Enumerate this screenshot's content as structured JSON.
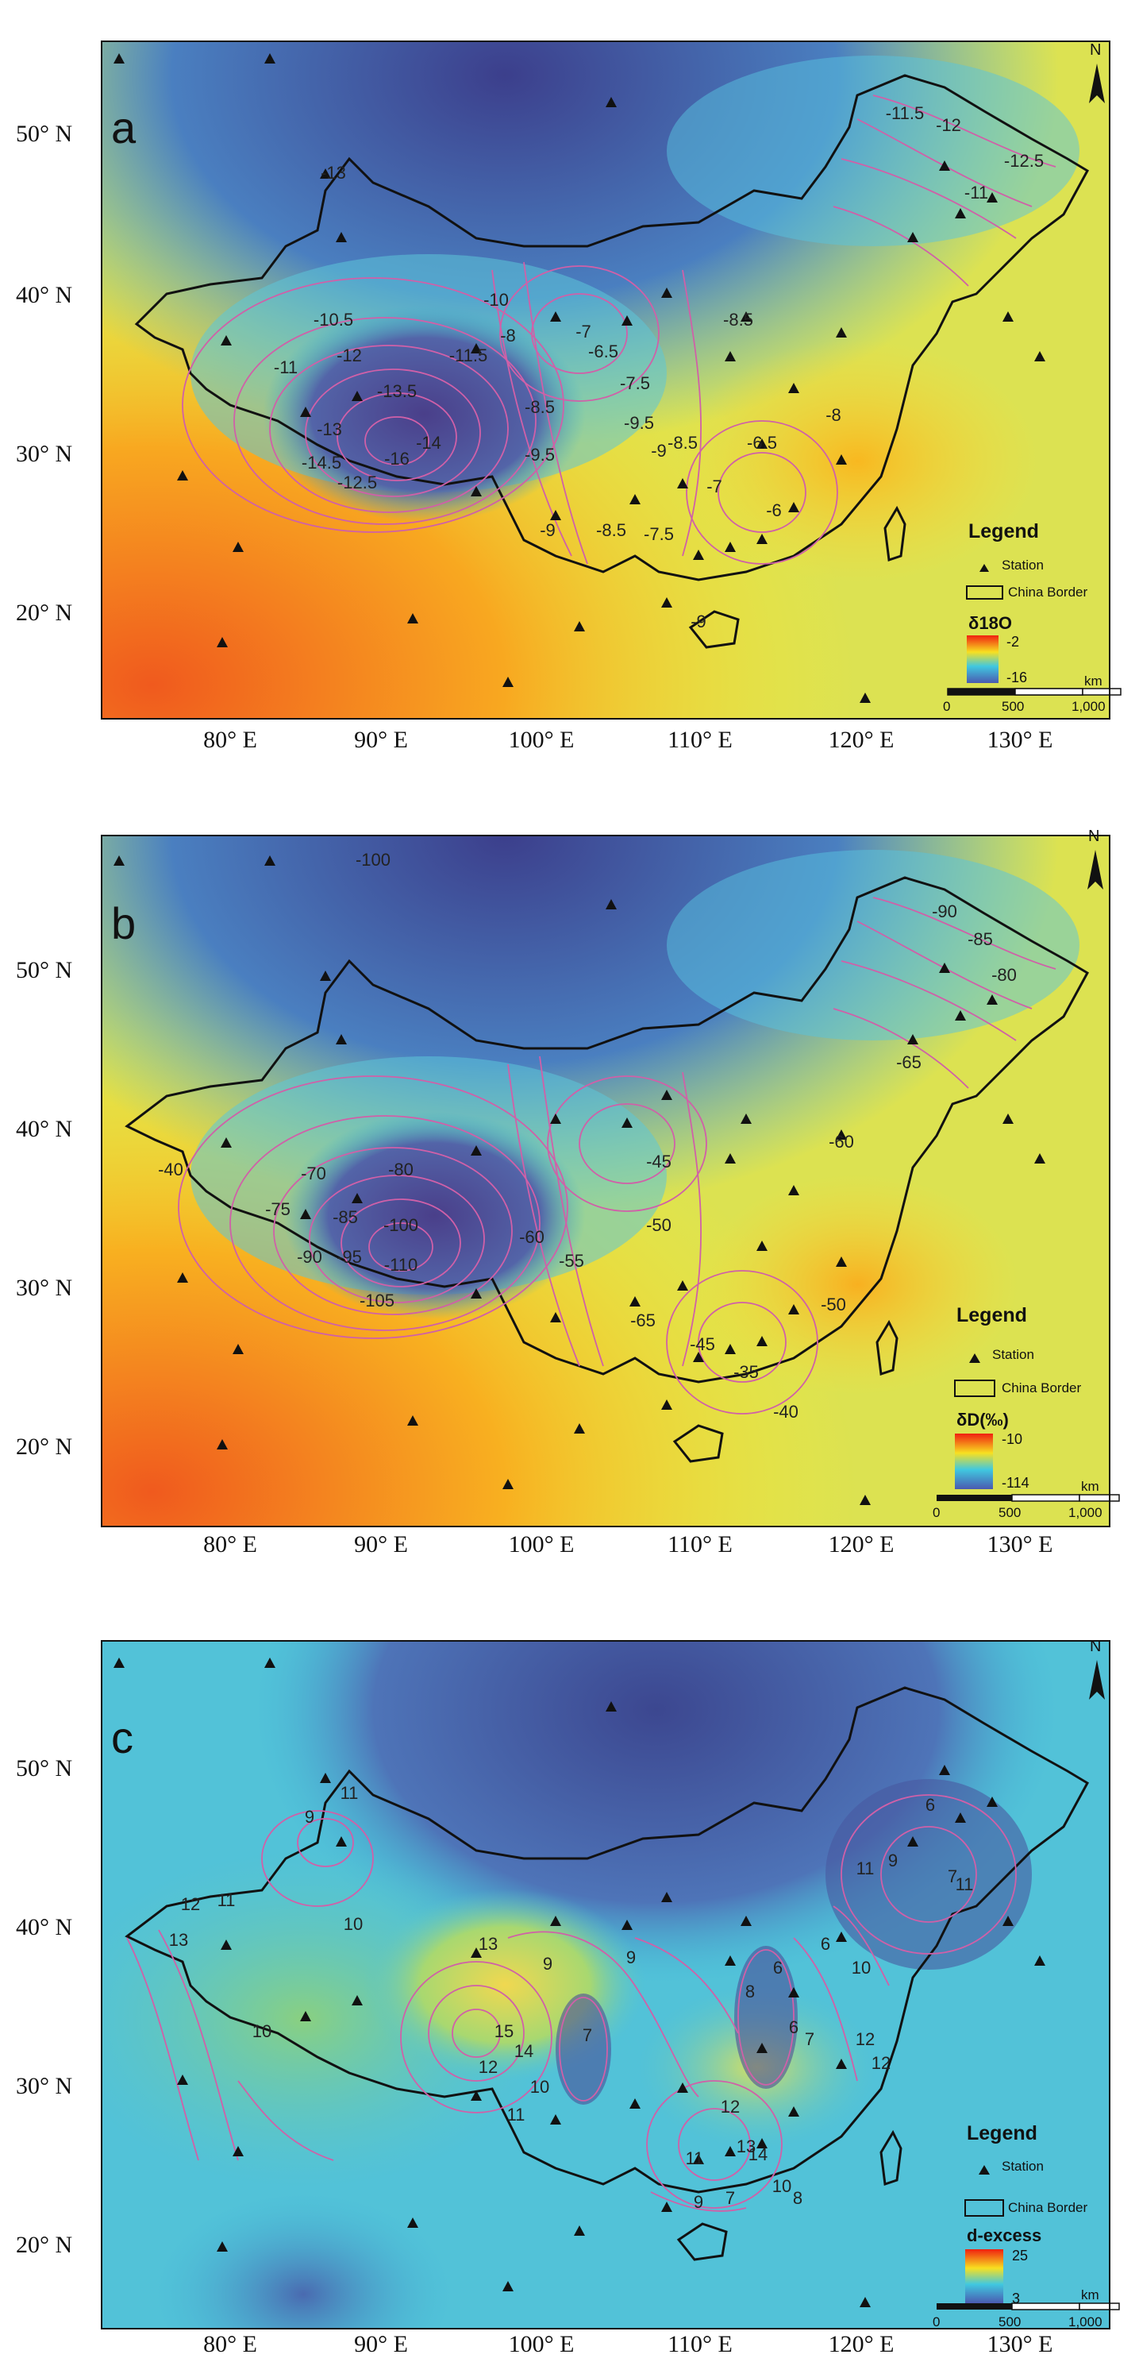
{
  "panels": [
    {
      "label": "a",
      "legend": {
        "title": "Legend",
        "station": "Station",
        "border": "China Border",
        "variable": "δ18O",
        "max": "-2",
        "min": "-16"
      },
      "contour_labels": [
        "-13",
        "-10.5",
        "-11",
        "-12",
        "-13.5",
        "-13",
        "-14.5",
        "-16",
        "-14",
        "-12.5",
        "-11.5",
        "-10",
        "-8",
        "-9.5",
        "-8.5",
        "-7",
        "-6.5",
        "-7.5",
        "-9",
        "-8.5",
        "-9.5",
        "-9",
        "-8.5",
        "-7.5",
        "-7",
        "-6.5",
        "-6",
        "-8.5",
        "-8",
        "-11.5",
        "-12",
        "-11",
        "-12.5",
        "-9"
      ]
    },
    {
      "label": "b",
      "legend": {
        "title": "Legend",
        "station": "Station",
        "border": "China Border",
        "variable": "δD(‰)",
        "max": "-10",
        "min": "-114"
      },
      "contour_labels": [
        "-100",
        "-40",
        "-70",
        "-75",
        "-85",
        "-80",
        "-90",
        "-95",
        "-100",
        "-110",
        "-105",
        "-60",
        "-55",
        "-45",
        "-50",
        "-65",
        "-45",
        "-35",
        "-40",
        "-60",
        "-50",
        "-90",
        "-85",
        "-80",
        "-65"
      ]
    },
    {
      "label": "c",
      "legend": {
        "title": "Legend",
        "station": "Station",
        "border": "China Border",
        "variable": "d-excess",
        "max": "25",
        "min": "3"
      },
      "contour_labels": [
        "11",
        "9",
        "11",
        "12",
        "13",
        "10",
        "10",
        "13",
        "15",
        "14",
        "12",
        "11",
        "10",
        "7",
        "9",
        "9",
        "8",
        "6",
        "6",
        "7",
        "11",
        "10",
        "6",
        "12",
        "12",
        "13",
        "14",
        "10",
        "11",
        "9",
        "7",
        "8",
        "6",
        "7",
        "11",
        "9",
        "12"
      ]
    }
  ],
  "axes": {
    "x_ticks": [
      "80° E",
      "90° E",
      "100° E",
      "110° E",
      "120° E",
      "130° E"
    ],
    "y_ticks_a": [
      "50° N",
      "40° N",
      "30° N",
      "20° N"
    ],
    "y_ticks_b": [
      "50° N",
      "40° N",
      "30° N",
      "20° N"
    ],
    "y_ticks_c": [
      "50° N",
      "40° N",
      "30° N",
      "20° N"
    ]
  },
  "scale_bar": {
    "unit": "km",
    "ticks": [
      "0",
      "500",
      "1,000"
    ]
  },
  "north_label": "N"
}
